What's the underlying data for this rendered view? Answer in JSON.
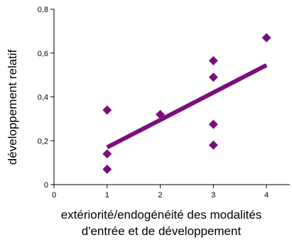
{
  "chart_data": {
    "type": "scatter",
    "xlabel_lines": [
      "extériorité/endogénéité des modalités",
      "d'entrée et de développement"
    ],
    "ylabel": "développement relatif",
    "xlim": [
      0,
      4.5
    ],
    "ylim": [
      0,
      0.8
    ],
    "xticks": [
      {
        "value": 0,
        "label": "0"
      },
      {
        "value": 1,
        "label": "1"
      },
      {
        "value": 2,
        "label": "2"
      },
      {
        "value": 3,
        "label": "3"
      },
      {
        "value": 4,
        "label": "4"
      }
    ],
    "yticks": [
      {
        "value": 0,
        "label": "0"
      },
      {
        "value": 0.2,
        "label": "0,2"
      },
      {
        "value": 0.4,
        "label": "0,4"
      },
      {
        "value": 0.6,
        "label": "0,6"
      },
      {
        "value": 0.8,
        "label": "0,8"
      }
    ],
    "points": [
      {
        "x": 1,
        "y": 0.34
      },
      {
        "x": 1,
        "y": 0.14
      },
      {
        "x": 1,
        "y": 0.07
      },
      {
        "x": 2,
        "y": 0.32
      },
      {
        "x": 3,
        "y": 0.565
      },
      {
        "x": 3,
        "y": 0.49
      },
      {
        "x": 3,
        "y": 0.275
      },
      {
        "x": 3,
        "y": 0.18
      },
      {
        "x": 4,
        "y": 0.67
      }
    ],
    "trendline": {
      "x1": 1,
      "y1": 0.17,
      "x2": 4,
      "y2": 0.545
    },
    "grid": false,
    "legend": "none",
    "colors": {
      "marker": "#7a0f7c",
      "trendline": "#7a0f7c",
      "axis": "#000000"
    }
  }
}
